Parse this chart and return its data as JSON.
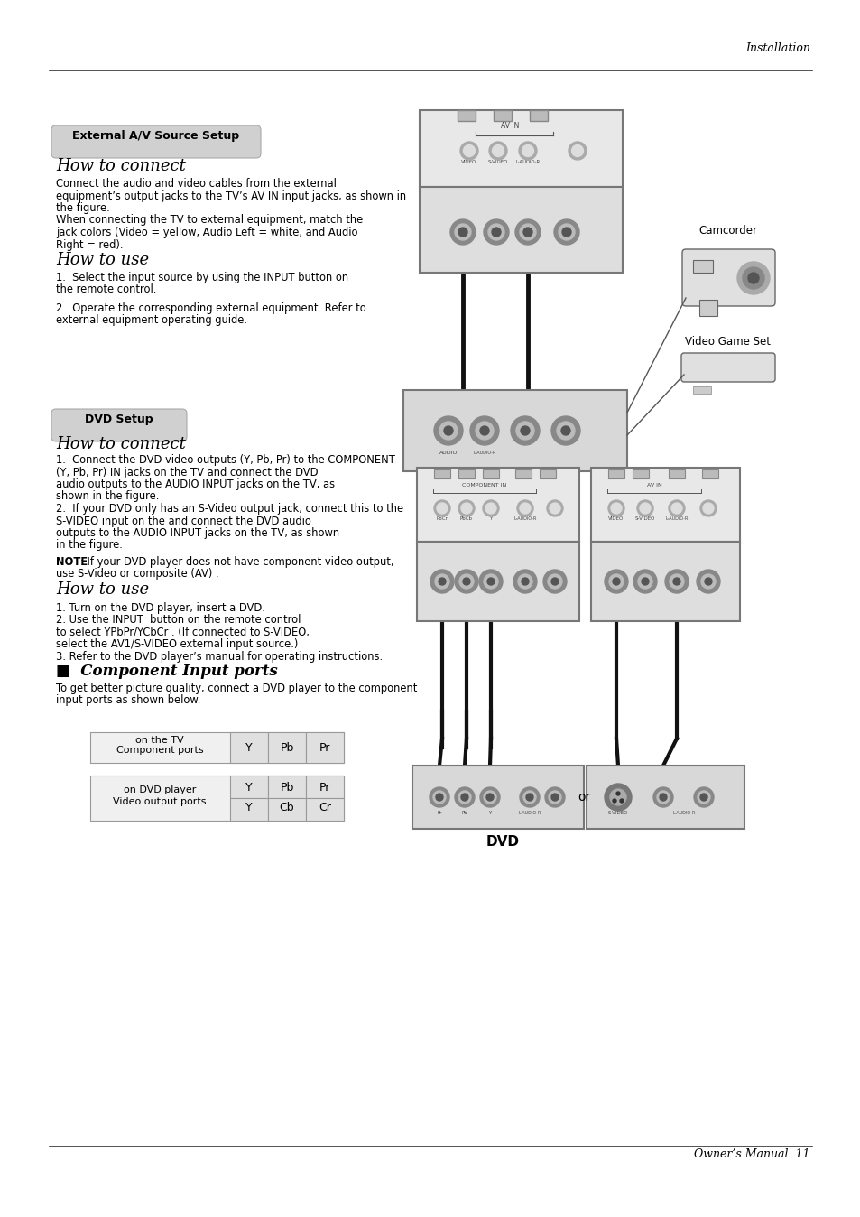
{
  "page_header_right": "Installation",
  "page_footer_right": "Owner’s Manual  11",
  "section1_badge": "External A/V Source Setup",
  "section1_title1": "How to connect",
  "section1_body1_lines": [
    "Connect the audio and video cables from the external",
    "equipment’s output jacks to the TV’s AV IN input jacks, as shown in",
    "the figure.",
    "When connecting the TV to external equipment, match the",
    "jack colors (Video = yellow, Audio Left = white, and Audio",
    "Right = red)."
  ],
  "section1_title2": "How to use",
  "section1_use1": "1.  Select the input source by using the INPUT button on",
  "section1_use1b": "the remote control.",
  "section1_use2": "2.  Operate the corresponding external equipment. Refer to",
  "section1_use2b": "external equipment operating guide.",
  "camcorder_label": "Camcorder",
  "videogame_label": "Video Game Set",
  "section2_badge": "DVD Setup",
  "section2_title1": "How to connect",
  "section2_connect_lines": [
    "1.  Connect the DVD video outputs (Y, Pb, Pr) to the COMPONENT",
    "(Y, Pb, Pr) IN jacks on the TV and connect the DVD",
    "audio outputs to the AUDIO INPUT jacks on the TV, as",
    "shown in the figure.",
    "2.  If your DVD only has an S-Video output jack, connect this to the",
    "S-VIDEO input on the and connect the DVD audio",
    "outputs to the AUDIO INPUT jacks on the TV, as shown",
    "in the figure."
  ],
  "section2_note_bold": "NOTE",
  "section2_note_rest": ": If your DVD player does not have component video output,",
  "section2_note_line2": "use S-Video or composite (AV) .",
  "section2_title2": "How to use",
  "section2_use_lines": [
    "1. Turn on the DVD player, insert a DVD.",
    "2. Use the INPUT  button on the remote control",
    "to select YPbPr/YCbCr . (If connected to S-VIDEO,",
    "select the AV1/S-VIDEO external input source.)",
    "3. Refer to the DVD player’s manual for operating instructions."
  ],
  "section2_title3": "■  Component Input ports",
  "section2_comp_lines": [
    "To get better picture quality, connect a DVD player to the component",
    "input ports as shown below."
  ],
  "dvd_label": "DVD",
  "or_label": "or",
  "table_row1_label_line1": "Component ports",
  "table_row1_label_line2": "on the TV",
  "table_row1_cells": [
    "Y",
    "Pb",
    "Pr"
  ],
  "table_row2_label_line1": "Video output ports",
  "table_row2_label_line2": "on DVD player",
  "table_row2_cells_top": [
    "Y",
    "Pb",
    "Pr"
  ],
  "table_row2_cells_bot": [
    "Y",
    "Cb",
    "Cr"
  ],
  "bg_color": "#ffffff",
  "text_color": "#000000",
  "badge_bg": "#d0d0d0",
  "badge_border": "#aaaaaa"
}
